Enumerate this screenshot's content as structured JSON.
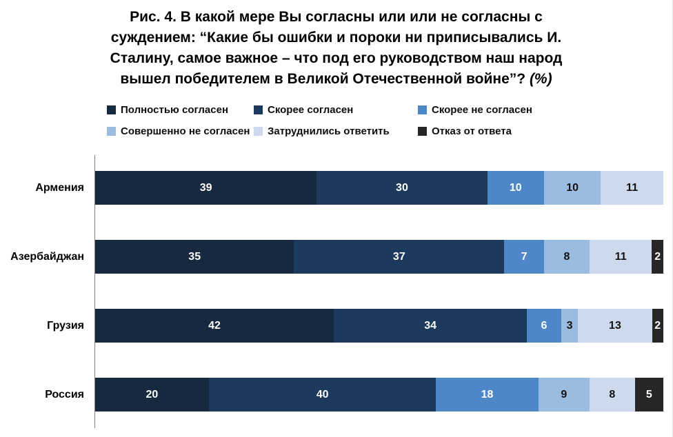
{
  "title": {
    "lines": [
      "Рис. 4.  В какой мере Вы согласны или или не согласны с",
      "суждением: “Какие бы ошибки и пороки ни приписывались И.",
      "Сталину, самое важное – что под его руководством наш народ",
      "вышел победителем в Великой Отечественной войне”?"
    ],
    "suffix_italic": "(%)"
  },
  "chart_data": {
    "type": "bar",
    "orientation": "horizontal",
    "stacked": true,
    "xlim": [
      0,
      100
    ],
    "grid": false,
    "legend_position": "top",
    "value_labels": true,
    "axis_line_color": "#7f7f7f",
    "categories": [
      "Армения",
      "Азербайджан",
      "Грузия",
      "Россия"
    ],
    "series": [
      {
        "name": "Полностью согласен",
        "color": "#16293E",
        "text_color": "#ffffff",
        "values": [
          39,
          35,
          42,
          20
        ]
      },
      {
        "name": "Скорее согласен",
        "color": "#1C3A5E",
        "text_color": "#ffffff",
        "values": [
          30,
          37,
          34,
          40
        ]
      },
      {
        "name": "Скорее не согласен",
        "color": "#4E87C8",
        "text_color": "#ffffff",
        "values": [
          10,
          7,
          6,
          18
        ]
      },
      {
        "name": "Совершенно не согласен",
        "color": "#9ABCE1",
        "text_color": "#111111",
        "values": [
          10,
          8,
          3,
          9
        ]
      },
      {
        "name": "Затруднились ответить",
        "color": "#CDDAEE",
        "text_color": "#111111",
        "values": [
          11,
          11,
          13,
          8
        ]
      },
      {
        "name": "Отказ от ответа",
        "color": "#262626",
        "text_color": "#ffffff",
        "values": [
          0,
          2,
          2,
          5
        ]
      }
    ]
  }
}
